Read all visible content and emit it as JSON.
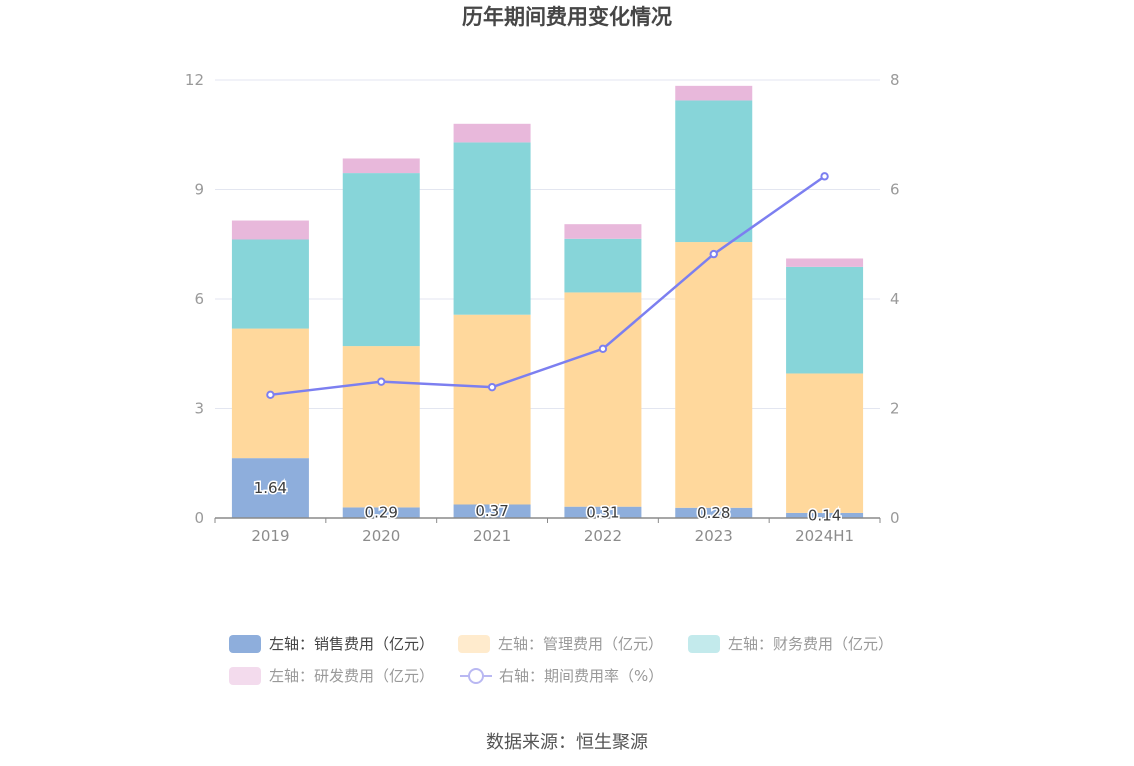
{
  "chart_data": {
    "type": "bar",
    "stacked": true,
    "title": "历年期间费用变化情况",
    "categories": [
      "2019",
      "2020",
      "2021",
      "2022",
      "2023",
      "2024H1"
    ],
    "series": [
      {
        "name": "左轴：销售费用（亿元）",
        "axis": "left",
        "values": [
          1.64,
          0.29,
          0.37,
          0.31,
          0.28,
          0.14
        ],
        "color": "#8eaedc",
        "labels": [
          "1.64",
          "0.29",
          "0.37",
          "0.31",
          "0.28",
          "0.14"
        ]
      },
      {
        "name": "左轴：管理费用（亿元）",
        "axis": "left",
        "values": [
          3.55,
          4.42,
          5.2,
          5.87,
          7.28,
          3.82
        ],
        "color": "#ffd89c"
      },
      {
        "name": "左轴：财务费用（亿元）",
        "axis": "left",
        "values": [
          2.44,
          4.74,
          4.72,
          1.47,
          3.88,
          2.92
        ],
        "color": "#87d5d9"
      },
      {
        "name": "左轴：研发费用（亿元）",
        "axis": "left",
        "values": [
          0.52,
          0.4,
          0.51,
          0.4,
          0.4,
          0.23
        ],
        "color": "#e8b8db"
      }
    ],
    "line_series": {
      "name": "右轴：期间费用率（%）",
      "axis": "right",
      "values": [
        2.25,
        2.49,
        2.39,
        3.09,
        4.82,
        6.24
      ],
      "color": "#7c7ff0"
    },
    "left_axis": {
      "ylim": [
        0,
        12
      ],
      "ticks": [
        "0",
        "3",
        "6",
        "9",
        "12"
      ]
    },
    "right_axis": {
      "ylim": [
        0,
        8
      ],
      "ticks": [
        "0",
        "2",
        "4",
        "6",
        "8"
      ]
    },
    "grid": true,
    "legend_position": "bottom",
    "legend_inactive_color": "#999999",
    "legend_active_color": "#444444"
  },
  "source": "数据来源：恒生聚源"
}
